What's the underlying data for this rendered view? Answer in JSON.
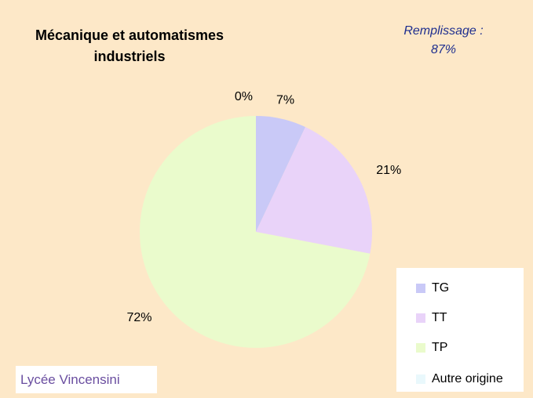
{
  "chart_data": {
    "type": "pie",
    "title": "Mécanique et automatismes industriels",
    "annotation": "Remplissage : 87%",
    "footer": "Lycée Vincensini",
    "categories": [
      "TG",
      "TT",
      "TP",
      "Autre origine"
    ],
    "values": [
      7,
      21,
      72,
      0
    ],
    "value_labels": [
      "7%",
      "21%",
      "72%",
      "0%"
    ],
    "colors": [
      "#c9c9f7",
      "#e9d3f9",
      "#eafbcc",
      "#e9f8fc"
    ],
    "legend": "right"
  }
}
